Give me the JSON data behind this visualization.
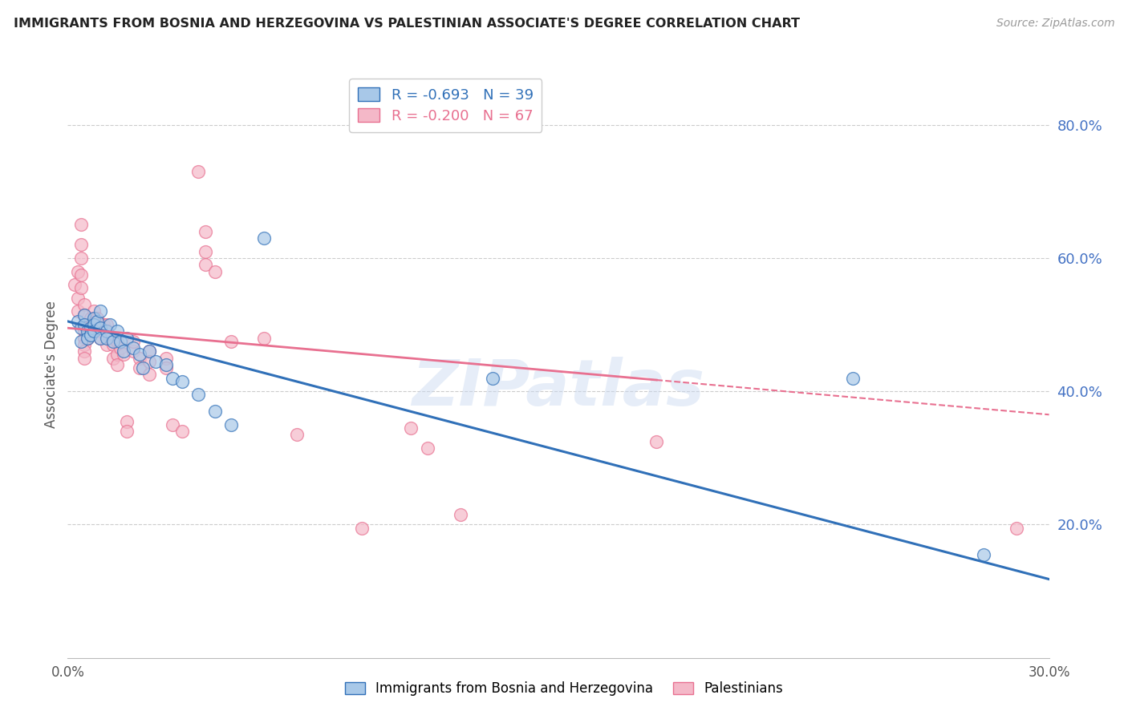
{
  "title": "IMMIGRANTS FROM BOSNIA AND HERZEGOVINA VS PALESTINIAN ASSOCIATE'S DEGREE CORRELATION CHART",
  "source": "Source: ZipAtlas.com",
  "ylabel": "Associate's Degree",
  "legend_label_blue": "Immigrants from Bosnia and Herzegovina",
  "legend_label_pink": "Palestinians",
  "r_blue": -0.693,
  "n_blue": 39,
  "r_pink": -0.2,
  "n_pink": 67,
  "xmin": 0.0,
  "xmax": 0.3,
  "ymin": 0.0,
  "ymax": 0.88,
  "yticks": [
    0.0,
    0.2,
    0.4,
    0.6,
    0.8
  ],
  "xticks": [
    0.0,
    0.05,
    0.1,
    0.15,
    0.2,
    0.25,
    0.3
  ],
  "blue_color": "#a8c8e8",
  "pink_color": "#f4b8c8",
  "blue_line_color": "#3070b8",
  "pink_line_color": "#e87090",
  "blue_line_solid_end": 0.3,
  "pink_line_solid_end": 0.18,
  "watermark": "ZIPatlas",
  "blue_line_y0": 0.505,
  "blue_line_y1": 0.118,
  "pink_line_y0": 0.495,
  "pink_line_y1": 0.365,
  "blue_points": [
    [
      0.003,
      0.505
    ],
    [
      0.004,
      0.495
    ],
    [
      0.004,
      0.475
    ],
    [
      0.005,
      0.515
    ],
    [
      0.005,
      0.5
    ],
    [
      0.006,
      0.49
    ],
    [
      0.006,
      0.48
    ],
    [
      0.007,
      0.495
    ],
    [
      0.007,
      0.485
    ],
    [
      0.008,
      0.51
    ],
    [
      0.008,
      0.5
    ],
    [
      0.008,
      0.49
    ],
    [
      0.009,
      0.505
    ],
    [
      0.01,
      0.495
    ],
    [
      0.01,
      0.48
    ],
    [
      0.01,
      0.52
    ],
    [
      0.012,
      0.49
    ],
    [
      0.012,
      0.48
    ],
    [
      0.013,
      0.5
    ],
    [
      0.014,
      0.475
    ],
    [
      0.015,
      0.49
    ],
    [
      0.016,
      0.475
    ],
    [
      0.017,
      0.46
    ],
    [
      0.018,
      0.48
    ],
    [
      0.02,
      0.465
    ],
    [
      0.022,
      0.455
    ],
    [
      0.023,
      0.435
    ],
    [
      0.025,
      0.46
    ],
    [
      0.027,
      0.445
    ],
    [
      0.03,
      0.44
    ],
    [
      0.032,
      0.42
    ],
    [
      0.035,
      0.415
    ],
    [
      0.04,
      0.395
    ],
    [
      0.045,
      0.37
    ],
    [
      0.05,
      0.35
    ],
    [
      0.06,
      0.63
    ],
    [
      0.13,
      0.42
    ],
    [
      0.24,
      0.42
    ],
    [
      0.28,
      0.155
    ]
  ],
  "pink_points": [
    [
      0.002,
      0.56
    ],
    [
      0.003,
      0.58
    ],
    [
      0.003,
      0.54
    ],
    [
      0.003,
      0.52
    ],
    [
      0.004,
      0.65
    ],
    [
      0.004,
      0.62
    ],
    [
      0.004,
      0.6
    ],
    [
      0.004,
      0.575
    ],
    [
      0.004,
      0.555
    ],
    [
      0.005,
      0.53
    ],
    [
      0.005,
      0.515
    ],
    [
      0.005,
      0.5
    ],
    [
      0.005,
      0.49
    ],
    [
      0.005,
      0.48
    ],
    [
      0.005,
      0.47
    ],
    [
      0.005,
      0.46
    ],
    [
      0.005,
      0.45
    ],
    [
      0.006,
      0.5
    ],
    [
      0.006,
      0.49
    ],
    [
      0.006,
      0.48
    ],
    [
      0.007,
      0.51
    ],
    [
      0.007,
      0.495
    ],
    [
      0.008,
      0.505
    ],
    [
      0.008,
      0.52
    ],
    [
      0.009,
      0.51
    ],
    [
      0.01,
      0.5
    ],
    [
      0.01,
      0.49
    ],
    [
      0.01,
      0.48
    ],
    [
      0.011,
      0.5
    ],
    [
      0.012,
      0.5
    ],
    [
      0.012,
      0.49
    ],
    [
      0.012,
      0.47
    ],
    [
      0.013,
      0.48
    ],
    [
      0.014,
      0.47
    ],
    [
      0.014,
      0.45
    ],
    [
      0.015,
      0.475
    ],
    [
      0.015,
      0.455
    ],
    [
      0.015,
      0.44
    ],
    [
      0.016,
      0.465
    ],
    [
      0.017,
      0.455
    ],
    [
      0.018,
      0.355
    ],
    [
      0.018,
      0.34
    ],
    [
      0.02,
      0.46
    ],
    [
      0.02,
      0.475
    ],
    [
      0.022,
      0.45
    ],
    [
      0.022,
      0.435
    ],
    [
      0.025,
      0.46
    ],
    [
      0.025,
      0.445
    ],
    [
      0.025,
      0.425
    ],
    [
      0.03,
      0.45
    ],
    [
      0.03,
      0.435
    ],
    [
      0.032,
      0.35
    ],
    [
      0.035,
      0.34
    ],
    [
      0.04,
      0.73
    ],
    [
      0.042,
      0.64
    ],
    [
      0.042,
      0.61
    ],
    [
      0.042,
      0.59
    ],
    [
      0.045,
      0.58
    ],
    [
      0.05,
      0.475
    ],
    [
      0.06,
      0.48
    ],
    [
      0.07,
      0.335
    ],
    [
      0.09,
      0.195
    ],
    [
      0.105,
      0.345
    ],
    [
      0.11,
      0.315
    ],
    [
      0.12,
      0.215
    ],
    [
      0.18,
      0.325
    ],
    [
      0.29,
      0.195
    ]
  ]
}
